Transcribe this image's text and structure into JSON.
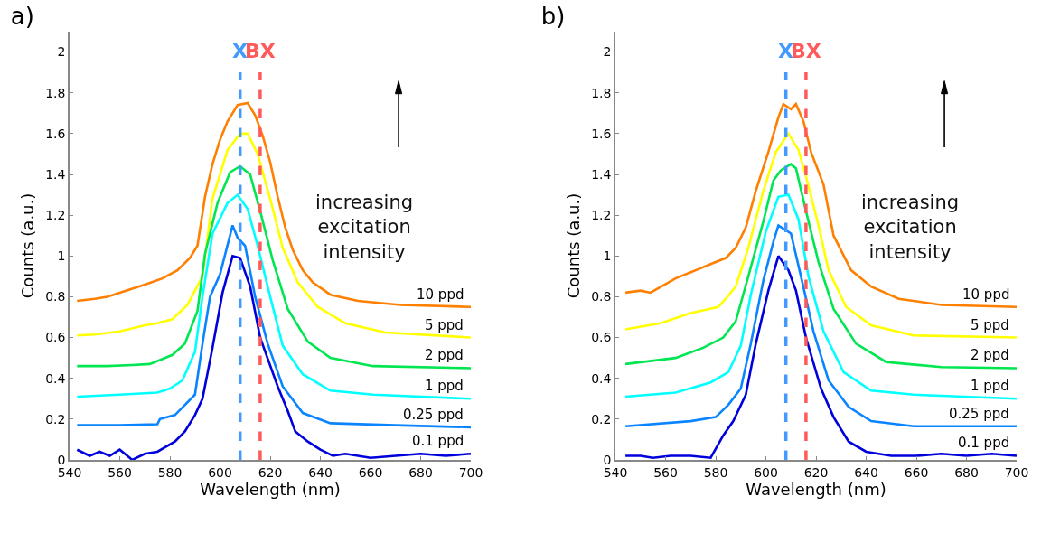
{
  "chart_data": [
    {
      "type": "line",
      "title": "a)",
      "xlabel": "Wavelength (nm)",
      "ylabel": "Counts (a.u.)",
      "xlim": [
        540,
        700
      ],
      "xticks": [
        540,
        560,
        580,
        600,
        620,
        640,
        660,
        680,
        700
      ],
      "ylim": [
        0,
        2.1
      ],
      "yticks": [
        0,
        0.2,
        0.4,
        0.6,
        0.8,
        1,
        1.2,
        1.4,
        1.6,
        1.8,
        2
      ],
      "line_style": "solid",
      "marker": "none",
      "annotations": [
        "increasing\nexcitation\nintensity"
      ],
      "ref_lines": [
        {
          "axis": "x",
          "value": 608,
          "label": "X",
          "color": "#4499ff",
          "line_style": "dashed"
        },
        {
          "axis": "x",
          "value": 616,
          "label": "BX",
          "color": "#ff5a5a",
          "line_style": "dashed"
        }
      ],
      "series": [
        {
          "name": "10 ppd",
          "color": "#ff7f00",
          "x": [
            543,
            550,
            555,
            560,
            565,
            570,
            577,
            583,
            588,
            591,
            594,
            597,
            600,
            603,
            607,
            611,
            614,
            617,
            620,
            623,
            626,
            629,
            633,
            637,
            644,
            655,
            672,
            700
          ],
          "values": [
            0.78,
            0.79,
            0.8,
            0.82,
            0.84,
            0.86,
            0.89,
            0.93,
            0.99,
            1.05,
            1.29,
            1.45,
            1.57,
            1.66,
            1.74,
            1.75,
            1.69,
            1.59,
            1.46,
            1.29,
            1.14,
            1.03,
            0.93,
            0.87,
            0.81,
            0.78,
            0.76,
            0.75
          ]
        },
        {
          "name": "5 ppd",
          "color": "#ffff00",
          "x": [
            543,
            550,
            560,
            570,
            575,
            581,
            587,
            593,
            597,
            603,
            608,
            611,
            615,
            620,
            625,
            631,
            639,
            650,
            666,
            700
          ],
          "values": [
            0.61,
            0.615,
            0.63,
            0.66,
            0.67,
            0.69,
            0.76,
            0.9,
            1.28,
            1.52,
            1.6,
            1.6,
            1.5,
            1.28,
            1.04,
            0.87,
            0.75,
            0.67,
            0.625,
            0.6
          ]
        },
        {
          "name": "2 ppd",
          "color": "#00e650",
          "x": [
            543,
            555,
            565,
            572,
            581,
            586,
            591,
            594,
            599,
            604,
            608,
            612,
            616,
            621,
            627,
            635,
            644,
            661,
            700
          ],
          "values": [
            0.46,
            0.46,
            0.465,
            0.47,
            0.515,
            0.57,
            0.73,
            1.01,
            1.26,
            1.41,
            1.44,
            1.4,
            1.22,
            0.98,
            0.74,
            0.58,
            0.5,
            0.46,
            0.45
          ]
        },
        {
          "name": "1 ppd",
          "color": "#00ffff",
          "x": [
            543,
            560,
            575,
            580,
            585,
            590,
            593,
            597,
            603,
            607,
            611,
            615,
            620,
            625,
            633,
            644,
            661,
            700
          ],
          "values": [
            0.31,
            0.32,
            0.33,
            0.35,
            0.39,
            0.53,
            0.8,
            1.11,
            1.26,
            1.3,
            1.23,
            1.05,
            0.8,
            0.56,
            0.42,
            0.34,
            0.32,
            0.3
          ]
        },
        {
          "name": "0.25 ppd",
          "color": "#0a85ff",
          "x": [
            543,
            560,
            575,
            576,
            582,
            586,
            590,
            593,
            596,
            600,
            605,
            607,
            610,
            614,
            619,
            625,
            633,
            644,
            670,
            700
          ],
          "values": [
            0.17,
            0.17,
            0.175,
            0.2,
            0.22,
            0.27,
            0.32,
            0.57,
            0.8,
            0.91,
            1.15,
            1.09,
            1.05,
            0.8,
            0.57,
            0.36,
            0.23,
            0.18,
            0.17,
            0.16
          ]
        },
        {
          "name": "0.1 ppd",
          "color": "#0000dd",
          "x": [
            543,
            548,
            552,
            556,
            560,
            565,
            570,
            575,
            582,
            586,
            590,
            593,
            597,
            601,
            605,
            608,
            612,
            616,
            623,
            627,
            630,
            635,
            640,
            645,
            650,
            660,
            670,
            680,
            690,
            700
          ],
          "values": [
            0.05,
            0.02,
            0.04,
            0.02,
            0.05,
            0,
            0.03,
            0.04,
            0.09,
            0.14,
            0.22,
            0.3,
            0.55,
            0.82,
            1,
            0.99,
            0.85,
            0.6,
            0.36,
            0.24,
            0.14,
            0.09,
            0.05,
            0.02,
            0.03,
            0.01,
            0.02,
            0.03,
            0.02,
            0.03
          ]
        }
      ]
    },
    {
      "type": "line",
      "title": "b)",
      "xlabel": "Wavelength (nm)",
      "ylabel": "Counts (a.u.)",
      "xlim": [
        540,
        700
      ],
      "xticks": [
        540,
        560,
        580,
        600,
        620,
        640,
        660,
        680,
        700
      ],
      "ylim": [
        0,
        2.1
      ],
      "yticks": [
        0,
        0.2,
        0.4,
        0.6,
        0.8,
        1,
        1.2,
        1.4,
        1.6,
        1.8,
        2
      ],
      "line_style": "solid",
      "marker": "none",
      "annotations": [
        "increasing\nexcitation\nintensity"
      ],
      "ref_lines": [
        {
          "axis": "x",
          "value": 608,
          "label": "X",
          "color": "#4499ff",
          "line_style": "dashed"
        },
        {
          "axis": "x",
          "value": 616,
          "label": "BX",
          "color": "#ff5a5a",
          "line_style": "dashed"
        }
      ],
      "series": [
        {
          "name": "10 ppd",
          "color": "#ff7f00",
          "x": [
            544,
            550,
            554,
            564,
            572,
            578,
            584,
            588,
            592,
            596,
            601,
            605,
            607,
            610,
            612,
            615,
            618,
            623,
            627,
            634,
            642,
            653,
            670,
            700
          ],
          "values": [
            0.82,
            0.83,
            0.82,
            0.89,
            0.93,
            0.96,
            0.99,
            1.04,
            1.14,
            1.32,
            1.51,
            1.68,
            1.745,
            1.72,
            1.745,
            1.66,
            1.51,
            1.35,
            1.1,
            0.93,
            0.85,
            0.79,
            0.76,
            0.75
          ]
        },
        {
          "name": "5 ppd",
          "color": "#ffff00",
          "x": [
            544,
            558,
            570,
            581,
            584,
            588,
            593,
            599,
            604,
            609,
            613,
            616,
            621,
            625,
            632,
            642,
            659,
            700
          ],
          "values": [
            0.64,
            0.67,
            0.72,
            0.75,
            0.79,
            0.85,
            1.04,
            1.32,
            1.51,
            1.6,
            1.52,
            1.39,
            1.15,
            0.93,
            0.75,
            0.66,
            0.61,
            0.6
          ]
        },
        {
          "name": "2 ppd",
          "color": "#00e650",
          "x": [
            544,
            564,
            575,
            583,
            588,
            593,
            599,
            603,
            606,
            610,
            612,
            616,
            621,
            627,
            636,
            648,
            670,
            700
          ],
          "values": [
            0.47,
            0.5,
            0.55,
            0.6,
            0.68,
            0.9,
            1.17,
            1.37,
            1.42,
            1.45,
            1.43,
            1.22,
            0.97,
            0.74,
            0.57,
            0.48,
            0.455,
            0.45
          ]
        },
        {
          "name": "1 ppd",
          "color": "#00ffff",
          "x": [
            544,
            564,
            578,
            585,
            590,
            594,
            600,
            605,
            609,
            613,
            617,
            623,
            631,
            642,
            659,
            700
          ],
          "values": [
            0.31,
            0.33,
            0.38,
            0.43,
            0.56,
            0.81,
            1.12,
            1.29,
            1.3,
            1.18,
            0.9,
            0.63,
            0.43,
            0.34,
            0.32,
            0.3
          ]
        },
        {
          "name": "0.25 ppd",
          "color": "#0a85ff",
          "x": [
            544,
            570,
            580,
            585,
            590,
            594,
            599,
            603,
            605,
            610,
            614,
            619,
            625,
            633,
            642,
            659,
            700
          ],
          "values": [
            0.165,
            0.19,
            0.21,
            0.27,
            0.35,
            0.57,
            0.88,
            1.07,
            1.15,
            1.11,
            0.9,
            0.63,
            0.39,
            0.26,
            0.19,
            0.165,
            0.165
          ]
        },
        {
          "name": "0.1 ppd",
          "color": "#0000dd",
          "x": [
            544,
            550,
            555,
            562,
            570,
            578,
            583,
            587,
            592,
            596,
            601,
            605,
            609,
            612,
            616,
            622,
            627,
            633,
            640,
            650,
            660,
            670,
            680,
            690,
            700
          ],
          "values": [
            0.02,
            0.02,
            0.01,
            0.02,
            0.02,
            0.01,
            0.12,
            0.19,
            0.32,
            0.57,
            0.83,
            1,
            0.93,
            0.83,
            0.6,
            0.35,
            0.21,
            0.09,
            0.04,
            0.02,
            0.02,
            0.03,
            0.02,
            0.03,
            0.02
          ]
        }
      ]
    }
  ]
}
